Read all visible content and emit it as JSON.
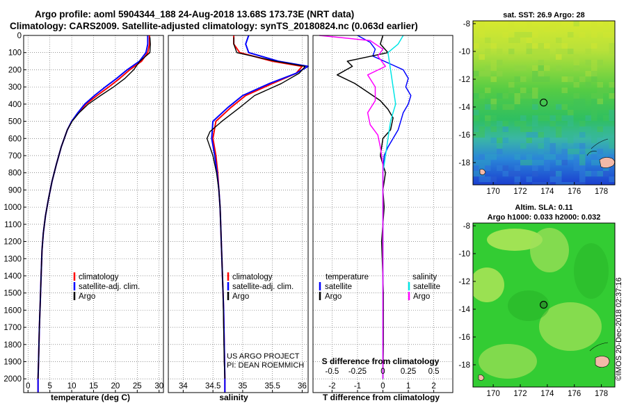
{
  "header": {
    "title_line1": "Argo profile: aoml 5904344_188 24-Aug-2018 13.68S 173.73E (NRT data)",
    "title_line2": "Climatology: CARS2009. Satellite-adjusted climatology: synTS_20180824.nc (0.063d earlier)"
  },
  "credit": {
    "project": "US ARGO PROJECT",
    "pi": "PI: DEAN ROEMMICH",
    "timestamp": "©IMOS 20-Dec-2018 02:37:16"
  },
  "colors": {
    "climatology": "#ff0000",
    "satellite": "#0000ff",
    "argo": "#000000",
    "salinity_satellite": "#00e5e5",
    "salinity_argo": "#ff00ff"
  },
  "chart_data": [
    {
      "type": "line",
      "panel": "temperature",
      "xlabel": "temperature (deg C)",
      "ylabel": "",
      "xlim": [
        -1,
        31
      ],
      "ylim": [
        2080,
        0
      ],
      "xticks": [
        0,
        5,
        10,
        15,
        20,
        25,
        30
      ],
      "yticks": [
        0,
        100,
        200,
        300,
        400,
        500,
        600,
        700,
        800,
        900,
        1000,
        1100,
        1200,
        1300,
        1400,
        1500,
        1600,
        1700,
        1800,
        1900,
        2000
      ],
      "legend": {
        "position": "bottom-right",
        "entries": [
          "climatology",
          "satellite-adj. clim.",
          "Argo"
        ]
      },
      "series": [
        {
          "name": "climatology",
          "color": "#ff0000",
          "x": [
            27.8,
            27.8,
            27.4,
            26,
            23.3,
            21,
            18.5,
            15.8,
            13.3,
            11.5,
            10,
            9,
            7.6,
            6.5,
            5.5,
            4.7,
            4,
            3.5,
            3.2,
            3,
            2.8,
            2.6,
            2.5,
            2.4,
            2.3,
            2.3
          ],
          "y": [
            0,
            50,
            100,
            150,
            200,
            250,
            300,
            350,
            400,
            450,
            500,
            550,
            650,
            750,
            850,
            950,
            1050,
            1150,
            1250,
            1400,
            1550,
            1700,
            1800,
            1900,
            2000,
            2080
          ]
        },
        {
          "name": "satellite-adj. clim.",
          "color": "#0000ff",
          "x": [
            27.4,
            27.4,
            27,
            25.5,
            22.7,
            20.3,
            17.7,
            15.2,
            13,
            11.4,
            10,
            9,
            7.6,
            6.5,
            5.5,
            4.7,
            4,
            3.5,
            3.2,
            3,
            2.8,
            2.6,
            2.5,
            2.4,
            2.3,
            2.3
          ],
          "y": [
            0,
            50,
            100,
            150,
            200,
            250,
            300,
            350,
            400,
            450,
            500,
            550,
            650,
            750,
            850,
            950,
            1050,
            1150,
            1250,
            1400,
            1550,
            1700,
            1800,
            1900,
            2000,
            2080
          ]
        },
        {
          "name": "Argo",
          "color": "#000000",
          "x": [
            27.9,
            28,
            27.9,
            25.6,
            24.2,
            22.2,
            19.6,
            16.6,
            13.8,
            11.7,
            10.1,
            9,
            7.6,
            6.5,
            5.5,
            4.7,
            4,
            3.5,
            3.2,
            3,
            2.8,
            2.6,
            2.5,
            2.4,
            2.3
          ],
          "y": [
            10,
            50,
            100,
            150,
            200,
            250,
            300,
            350,
            400,
            450,
            500,
            550,
            650,
            750,
            850,
            950,
            1050,
            1150,
            1250,
            1400,
            1550,
            1700,
            1800,
            1900,
            2000
          ]
        }
      ]
    },
    {
      "type": "line",
      "panel": "salinity",
      "xlabel": "salinity",
      "ylabel": "",
      "xlim": [
        33.75,
        36.1
      ],
      "ylim": [
        2080,
        0
      ],
      "xticks": [
        34,
        34.5,
        35,
        35.5,
        36
      ],
      "legend": {
        "position": "bottom-right",
        "entries": [
          "climatology",
          "satellite-adj. clim.",
          "Argo"
        ]
      },
      "series": [
        {
          "name": "climatology",
          "color": "#ff0000",
          "x": [
            34.85,
            34.85,
            34.95,
            35.5,
            36,
            35.9,
            35.5,
            35.05,
            34.8,
            34.55,
            34.5,
            34.55,
            34.58,
            34.6,
            34.62,
            34.63,
            34.64,
            34.65,
            34.66,
            34.67,
            34.68,
            34.69,
            34.7,
            34.7
          ],
          "y": [
            0,
            50,
            100,
            150,
            180,
            220,
            280,
            350,
            420,
            500,
            600,
            700,
            800,
            900,
            1000,
            1100,
            1200,
            1300,
            1400,
            1500,
            1600,
            1800,
            2000,
            2080
          ]
        },
        {
          "name": "satellite-adj. clim.",
          "color": "#0000ff",
          "x": [
            35.1,
            35.05,
            35.1,
            35.6,
            36.1,
            35.9,
            35.45,
            35,
            34.75,
            34.5,
            34.48,
            34.53,
            34.57,
            34.6,
            34.62,
            34.63,
            34.64,
            34.65,
            34.66,
            34.67,
            34.68,
            34.69,
            34.7,
            34.7
          ],
          "y": [
            0,
            50,
            100,
            150,
            180,
            220,
            280,
            350,
            420,
            500,
            600,
            700,
            800,
            900,
            1000,
            1100,
            1200,
            1300,
            1400,
            1500,
            1600,
            1800,
            2000,
            2080
          ]
        },
        {
          "name": "Argo",
          "color": "#000000",
          "x": [
            34.85,
            34.85,
            34.9,
            35.55,
            36.05,
            35.95,
            35.65,
            35.2,
            34.95,
            34.65,
            34.45,
            34.4,
            34.5,
            34.56,
            34.6,
            34.62,
            34.63,
            34.64,
            34.65,
            34.66,
            34.67,
            34.68,
            34.69,
            34.7
          ],
          "y": [
            10,
            50,
            100,
            150,
            180,
            220,
            280,
            350,
            420,
            500,
            560,
            600,
            700,
            800,
            900,
            1000,
            1100,
            1200,
            1300,
            1400,
            1500,
            1700,
            1900,
            2000
          ]
        }
      ]
    },
    {
      "type": "line",
      "panel": "difference",
      "xlabel": "T difference from climatology",
      "xlabel_top": "S difference from climatology",
      "ylabel": "",
      "xlim": [
        -2.75,
        2.75
      ],
      "ylim": [
        2080,
        0
      ],
      "xticks": [
        -2,
        -1,
        0,
        1,
        2
      ],
      "xticks_top": [
        "-0.5",
        "-0.25",
        "0",
        "0.25",
        "0.5"
      ],
      "legend": {
        "position": "bottom",
        "temperature_title": "temperature",
        "salinity_title": "salinity",
        "entries": [
          "satellite",
          "Argo",
          "satellite",
          "Argo"
        ]
      },
      "series": [
        {
          "name": "temperature satellite",
          "color": "#0000ff",
          "x": [
            -1,
            -0.5,
            -0.3,
            -0.4,
            0.2,
            0.8,
            1,
            0.9,
            1.1,
            1,
            0.8,
            0.7,
            0.6,
            0.4,
            0.2,
            0.05,
            0,
            0,
            0,
            0,
            0,
            0
          ],
          "y": [
            0,
            40,
            80,
            120,
            160,
            200,
            250,
            300,
            350,
            400,
            450,
            500,
            550,
            600,
            650,
            700,
            800,
            1000,
            1200,
            1500,
            1800,
            2000
          ]
        },
        {
          "name": "temperature Argo",
          "color": "#000000",
          "x": [
            0,
            -0.1,
            0.2,
            -1.4,
            -1.2,
            -1.8,
            -1.1,
            -0.6,
            -0.1,
            0.2,
            0.4,
            0.3,
            0,
            -0.1,
            0.1,
            0,
            0.05,
            -0.05,
            0.02,
            0.02,
            0
          ],
          "y": [
            0,
            50,
            100,
            150,
            180,
            230,
            280,
            330,
            380,
            430,
            480,
            550,
            600,
            700,
            800,
            900,
            1000,
            1200,
            1500,
            1800,
            2000
          ]
        },
        {
          "name": "salinity satellite",
          "color": "#00e5e5",
          "x": [
            0.8,
            0.6,
            0.2,
            0.3,
            0.4,
            0.5,
            0.4,
            0.3,
            0.2,
            0.1,
            0,
            0,
            0,
            0
          ],
          "y": [
            0,
            50,
            100,
            200,
            300,
            400,
            450,
            500,
            600,
            700,
            800,
            1200,
            1600,
            2000
          ]
        },
        {
          "name": "salinity Argo",
          "color": "#ff00ff",
          "x": [
            -2.5,
            -0.5,
            0,
            -0.2,
            0.1,
            -0.6,
            -0.3,
            -0.3,
            -0.6,
            -0.5,
            -0.2,
            -0.1,
            0,
            0,
            0
          ],
          "y": [
            0,
            30,
            80,
            120,
            180,
            230,
            300,
            380,
            450,
            520,
            580,
            650,
            750,
            1200,
            2000
          ]
        }
      ]
    },
    {
      "type": "heatmap",
      "panel": "sst-map",
      "title": "sat. SST: 26.9 Argo: 28",
      "xlim": [
        168.5,
        179
      ],
      "ylim": [
        -19.6,
        -7.8
      ],
      "xticks": [
        170,
        172,
        174,
        176,
        178
      ],
      "yticks": [
        -8,
        -10,
        -12,
        -14,
        -16,
        -18
      ],
      "marker": {
        "lon": 173.73,
        "lat": -13.68
      }
    },
    {
      "type": "heatmap",
      "panel": "sla-map",
      "title_line1": "Altim. SLA: 0.11",
      "title_line2": "Argo h1000: 0.033 h2000: 0.032",
      "xlim": [
        168.5,
        179
      ],
      "ylim": [
        -19.6,
        -7.8
      ],
      "xticks": [
        170,
        172,
        174,
        176,
        178
      ],
      "yticks": [
        -8,
        -10,
        -12,
        -14,
        -16,
        -18
      ],
      "marker": {
        "lon": 173.73,
        "lat": -13.68
      }
    }
  ]
}
